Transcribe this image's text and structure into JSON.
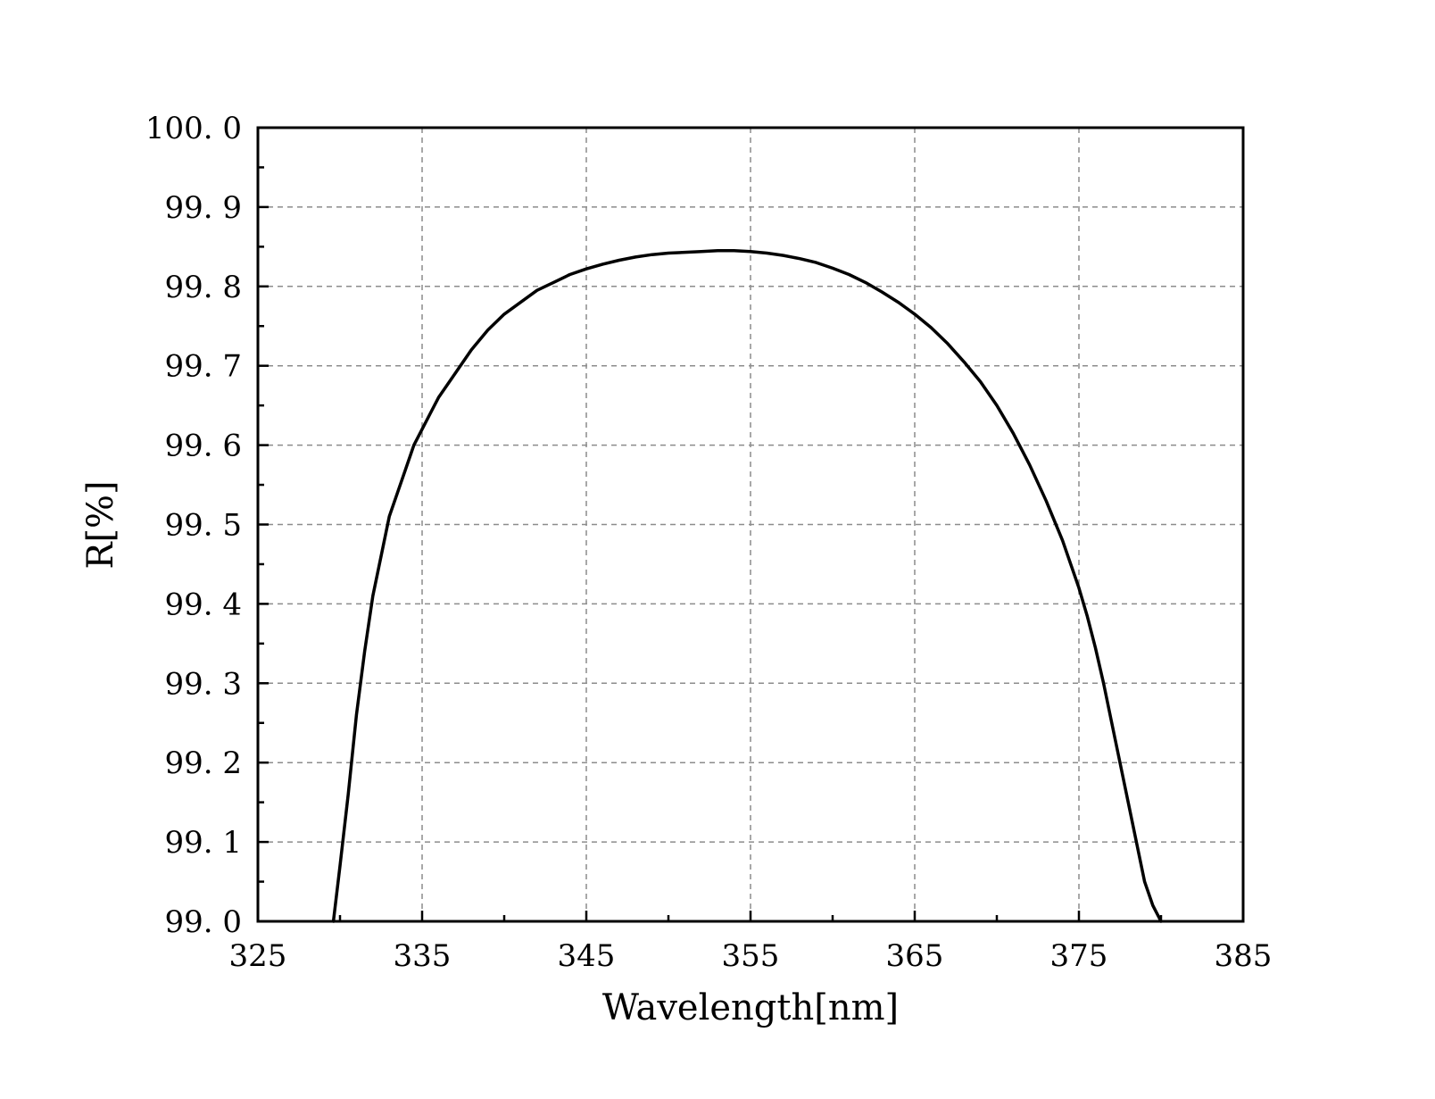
{
  "chart_data": {
    "type": "line",
    "xlabel": "Wavelength[nm]",
    "ylabel": "R[%]",
    "xlim": [
      325,
      385
    ],
    "ylim": [
      99.0,
      100.0
    ],
    "grid": true,
    "x_ticks": [
      325,
      335,
      345,
      355,
      365,
      375,
      385
    ],
    "x_tick_labels": [
      "325",
      "335",
      "345",
      "355",
      "365",
      "375",
      "385"
    ],
    "y_ticks": [
      99.0,
      99.1,
      99.2,
      99.3,
      99.4,
      99.5,
      99.6,
      99.7,
      99.8,
      99.9,
      100.0
    ],
    "y_tick_labels": [
      "99. 0",
      "99. 1",
      "99. 2",
      "99. 3",
      "99. 4",
      "99. 5",
      "99. 6",
      "99. 7",
      "99. 8",
      "99. 9",
      "100. 0"
    ],
    "colors": {
      "line": "#000000",
      "grid": "#8c8c8c",
      "axis": "#000000"
    },
    "series": [
      {
        "x": [
          329.6,
          330.0,
          330.5,
          331.0,
          331.5,
          332.0,
          332.5,
          333.0,
          333.5,
          334.0,
          334.5,
          335.0,
          335.5,
          336.0,
          337.0,
          338.0,
          339.0,
          340.0,
          341.0,
          342.0,
          343.0,
          344.0,
          345.0,
          346.0,
          347.0,
          348.0,
          349.0,
          350.0,
          351.0,
          352.0,
          353.0,
          354.0,
          355.0,
          356.0,
          357.0,
          358.0,
          359.0,
          360.0,
          361.0,
          362.0,
          363.0,
          364.0,
          365.0,
          366.0,
          367.0,
          368.0,
          369.0,
          370.0,
          371.0,
          372.0,
          373.0,
          373.5,
          374.0,
          374.5,
          375.0,
          375.5,
          376.0,
          376.5,
          377.0,
          377.5,
          378.0,
          378.5,
          379.0,
          379.5,
          380.0
        ],
        "y": [
          99.0,
          99.07,
          99.16,
          99.26,
          99.34,
          99.41,
          99.46,
          99.51,
          99.54,
          99.57,
          99.6,
          99.62,
          99.64,
          99.66,
          99.69,
          99.72,
          99.745,
          99.765,
          99.78,
          99.795,
          99.805,
          99.815,
          99.822,
          99.828,
          99.833,
          99.837,
          99.84,
          99.842,
          99.843,
          99.844,
          99.845,
          99.845,
          99.844,
          99.842,
          99.839,
          99.835,
          99.83,
          99.823,
          99.815,
          99.805,
          99.793,
          99.78,
          99.765,
          99.748,
          99.728,
          99.705,
          99.68,
          99.65,
          99.615,
          99.575,
          99.53,
          99.505,
          99.48,
          99.45,
          99.42,
          99.385,
          99.345,
          99.3,
          99.25,
          99.2,
          99.15,
          99.1,
          99.05,
          99.02,
          99.0
        ]
      }
    ]
  }
}
